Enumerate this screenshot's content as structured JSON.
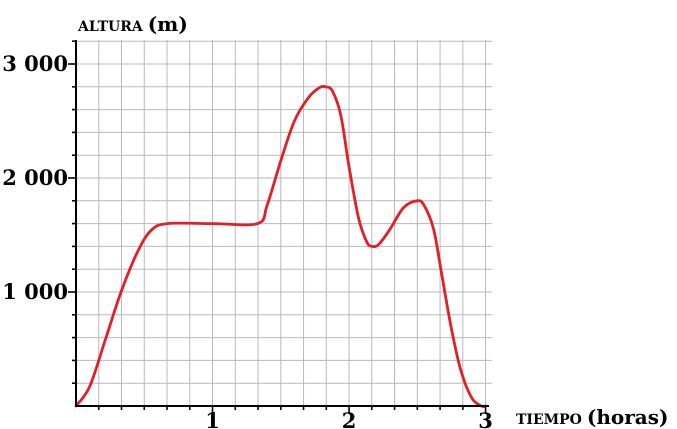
{
  "chart_data": {
    "type": "line",
    "title": "",
    "ylabel_caps": "ALTURA",
    "ylabel_unit": "(m)",
    "xlabel_caps": "TIEMPO",
    "xlabel_unit": "(horas)",
    "xlim": [
      0,
      3.05
    ],
    "ylim": [
      0,
      3000
    ],
    "x_grid_step": 0.1667,
    "y_grid_step": 200,
    "x_ticks": [
      {
        "value": 1,
        "label": "1"
      },
      {
        "value": 2,
        "label": "2"
      },
      {
        "value": 3,
        "label": "3"
      }
    ],
    "y_ticks": [
      {
        "value": 1000,
        "label": "1 000"
      },
      {
        "value": 2000,
        "label": "2 000"
      },
      {
        "value": 3000,
        "label": "3 000"
      }
    ],
    "grid": true,
    "color": "#e41e26",
    "series": [
      {
        "points": [
          [
            0,
            0
          ],
          [
            0.1,
            170
          ],
          [
            0.22,
            600
          ],
          [
            0.33,
            1000
          ],
          [
            0.45,
            1350
          ],
          [
            0.55,
            1540
          ],
          [
            0.67,
            1600
          ],
          [
            1.0,
            1600
          ],
          [
            1.33,
            1600
          ],
          [
            1.4,
            1760
          ],
          [
            1.5,
            2150
          ],
          [
            1.6,
            2500
          ],
          [
            1.7,
            2700
          ],
          [
            1.78,
            2790
          ],
          [
            1.83,
            2800
          ],
          [
            1.88,
            2760
          ],
          [
            1.94,
            2550
          ],
          [
            2.0,
            2100
          ],
          [
            2.07,
            1650
          ],
          [
            2.13,
            1440
          ],
          [
            2.17,
            1400
          ],
          [
            2.22,
            1420
          ],
          [
            2.3,
            1550
          ],
          [
            2.4,
            1740
          ],
          [
            2.5,
            1800
          ],
          [
            2.55,
            1760
          ],
          [
            2.62,
            1550
          ],
          [
            2.68,
            1150
          ],
          [
            2.75,
            680
          ],
          [
            2.82,
            310
          ],
          [
            2.9,
            70
          ],
          [
            2.97,
            0
          ],
          [
            3.0,
            0
          ]
        ]
      }
    ]
  }
}
